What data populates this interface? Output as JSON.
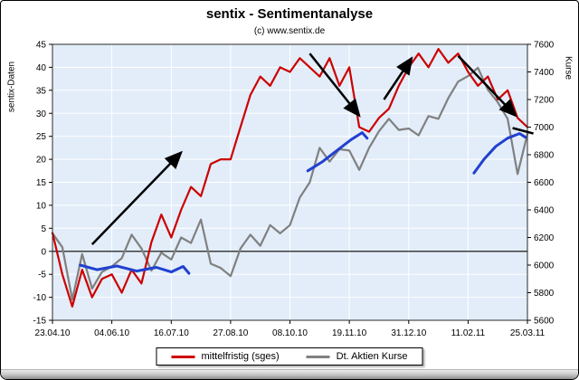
{
  "chart_data": {
    "type": "line",
    "title": "sentix - Sentimentanalyse",
    "subtitle": "(c) www.sentix.de",
    "ylabel_left": "sentix-Daten",
    "ylabel_right": "Kurse",
    "ylim_left": [
      -15,
      45
    ],
    "ylim_right": [
      5600,
      7600
    ],
    "yticks_left": [
      -15,
      -10,
      -5,
      0,
      5,
      10,
      15,
      20,
      25,
      30,
      35,
      40,
      45
    ],
    "yticks_right": [
      5600,
      5800,
      6000,
      6200,
      6400,
      6600,
      6800,
      7000,
      7200,
      7400,
      7600
    ],
    "x_ticklabels": [
      "23.04.10",
      "04.06.10",
      "16.07.10",
      "27.08.10",
      "08.10.10",
      "19.11.10",
      "31.12.10",
      "11.02.11",
      "25.03.11"
    ],
    "x_tick_weeks": [
      0,
      6,
      12,
      18,
      24,
      30,
      36,
      42,
      48
    ],
    "weeks": 49,
    "zero_line_left_value": 0,
    "grid": true,
    "legend_position": "bottom",
    "colors": {
      "red": "#cc0000",
      "gray": "#808080",
      "annotation_blue": "#2140d0",
      "annotation_black": "#000000",
      "plot_bg": "#e2edf9",
      "grid": "#ffffff",
      "zero_line": "#000000",
      "plot_border": "#2a2a2a"
    },
    "series": [
      {
        "key": "sentiment-line",
        "name": "mittelfristig (sges)",
        "color": "#cc0000",
        "axis": "left",
        "values": [
          4,
          -5,
          -12,
          -4,
          -10,
          -6,
          -5,
          -9,
          -4,
          -7,
          2,
          8,
          3,
          9,
          14,
          12,
          19,
          20,
          20,
          27,
          34,
          38,
          36,
          40,
          39,
          42,
          40,
          38,
          42,
          36,
          40,
          27,
          26,
          29,
          31,
          36,
          40,
          43,
          40,
          44,
          41,
          43,
          39,
          36,
          38,
          33,
          35,
          29,
          27
        ]
      },
      {
        "key": "dax-kurse-line",
        "name": "Dt. Aktien Kurse",
        "color": "#808080",
        "axis": "right",
        "values": [
          6230,
          6130,
          5750,
          6080,
          5830,
          5950,
          5990,
          6050,
          6220,
          6120,
          5960,
          6090,
          6040,
          6200,
          6160,
          6330,
          6010,
          5980,
          5920,
          6120,
          6220,
          6140,
          6290,
          6230,
          6290,
          6490,
          6600,
          6850,
          6750,
          6840,
          6830,
          6690,
          6850,
          6970,
          7060,
          6980,
          6990,
          6940,
          7080,
          7060,
          7210,
          7330,
          7370,
          7430,
          7270,
          7180,
          7060,
          6660,
          6950
        ]
      }
    ],
    "annotations": {
      "arrows": [
        {
          "from": [
            4,
            1.5
          ],
          "to": [
            13,
            21.5
          ]
        },
        {
          "from": [
            26,
            43
          ],
          "to": [
            31,
            29.5
          ]
        },
        {
          "from": [
            33.5,
            33
          ],
          "to": [
            36.3,
            42
          ]
        },
        {
          "from": [
            41,
            42.5
          ],
          "to": [
            46.8,
            29.5
          ]
        }
      ],
      "lines": [
        {
          "from": [
            46.5,
            26.8
          ],
          "to": [
            48.6,
            25.6
          ]
        }
      ],
      "scribbles": [
        {
          "points": [
            [
              2.8,
              -3.0
            ],
            [
              4.5,
              -4.0
            ],
            [
              6.5,
              -3.2
            ],
            [
              8.5,
              -4.3
            ],
            [
              10.5,
              -3.5
            ],
            [
              12.0,
              -4.5
            ],
            [
              13.2,
              -3.3
            ],
            [
              13.8,
              -4.8
            ]
          ]
        },
        {
          "points": [
            [
              25.8,
              17.5
            ],
            [
              27.3,
              19.5
            ],
            [
              28.8,
              22.0
            ],
            [
              30.2,
              24.3
            ],
            [
              31.3,
              25.8
            ],
            [
              31.8,
              24.6
            ]
          ]
        },
        {
          "points": [
            [
              42.6,
              17.0
            ],
            [
              43.6,
              20.0
            ],
            [
              44.8,
              22.8
            ],
            [
              46.0,
              24.6
            ],
            [
              47.2,
              25.6
            ],
            [
              47.8,
              24.8
            ]
          ]
        }
      ]
    }
  }
}
